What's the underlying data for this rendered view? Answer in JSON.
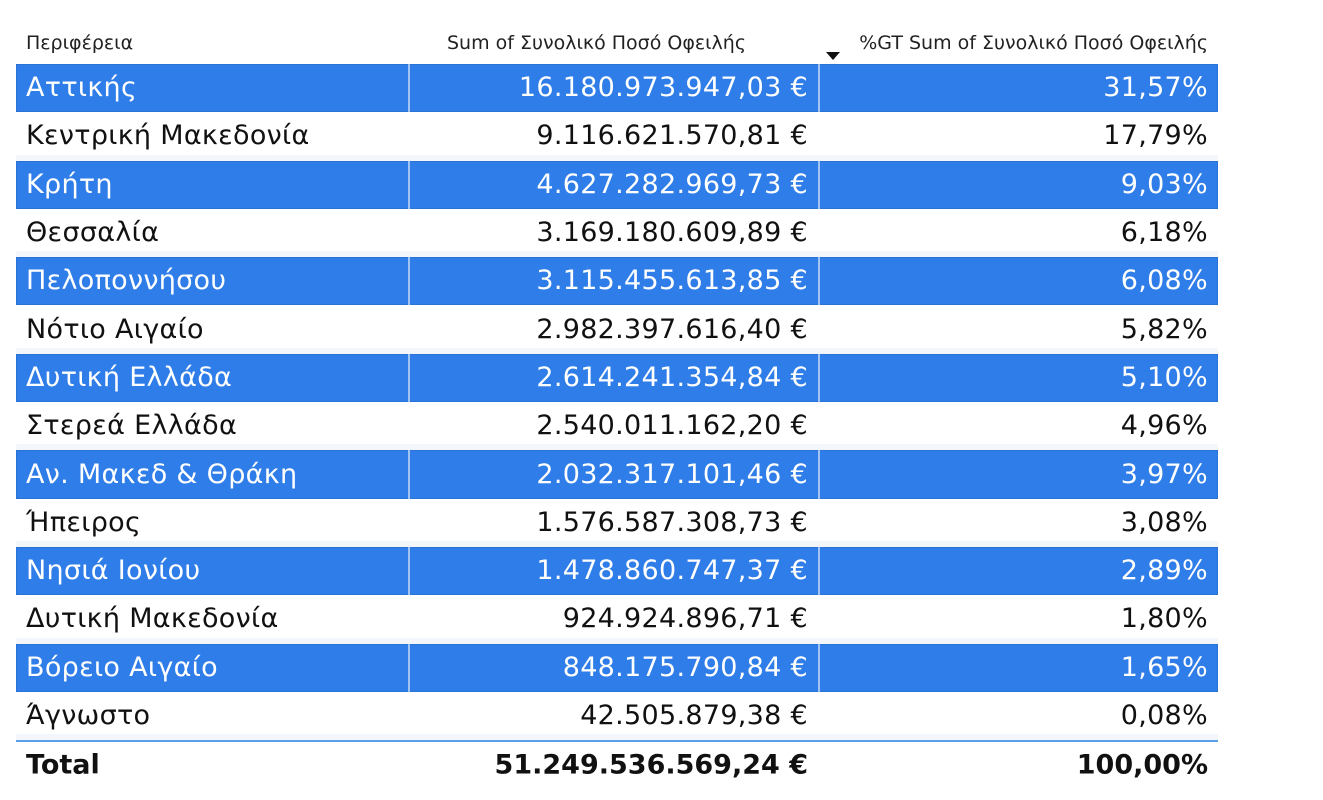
{
  "chart_data": {
    "type": "table",
    "columns": [
      "Περιφέρεια",
      "Sum of Συνολικό Ποσό Οφειλής",
      "%GT Sum of Συνολικό Ποσό Οφειλής"
    ],
    "sorted_column": "%GT Sum of Συνολικό Ποσό Οφειλής",
    "sort_direction": "descending",
    "rows": [
      {
        "region": "Αττικής",
        "sum": "16.180.973.947,03 €",
        "pct": "31,57%"
      },
      {
        "region": "Κεντρική Μακεδονία",
        "sum": "9.116.621.570,81 €",
        "pct": "17,79%"
      },
      {
        "region": "Κρήτη",
        "sum": "4.627.282.969,73 €",
        "pct": "9,03%"
      },
      {
        "region": "Θεσσαλία",
        "sum": "3.169.180.609,89 €",
        "pct": "6,18%"
      },
      {
        "region": "Πελοποννήσου",
        "sum": "3.115.455.613,85 €",
        "pct": "6,08%"
      },
      {
        "region": "Νότιο Αιγαίο",
        "sum": "2.982.397.616,40 €",
        "pct": "5,82%"
      },
      {
        "region": "Δυτική Ελλάδα",
        "sum": "2.614.241.354,84 €",
        "pct": "5,10%"
      },
      {
        "region": "Στερεά Ελλάδα",
        "sum": "2.540.011.162,20 €",
        "pct": "4,96%"
      },
      {
        "region": "Αν. Μακεδ & Θράκη",
        "sum": "2.032.317.101,46 €",
        "pct": "3,97%"
      },
      {
        "region": "Ήπειρος",
        "sum": "1.576.587.308,73 €",
        "pct": "3,08%"
      },
      {
        "region": "Νησιά Ιονίου",
        "sum": "1.478.860.747,37 €",
        "pct": "2,89%"
      },
      {
        "region": "Δυτική Μακεδονία",
        "sum": "924.924.896,71 €",
        "pct": "1,80%"
      },
      {
        "region": "Βόρειο Αιγαίο",
        "sum": "848.175.790,84 €",
        "pct": "1,65%"
      },
      {
        "region": "Άγνωστο",
        "sum": "42.505.879,38 €",
        "pct": "0,08%"
      }
    ],
    "total": {
      "label": "Total",
      "sum": "51.249.536.569,24 €",
      "pct": "100,00%"
    }
  },
  "colors": {
    "band_row": "#2f7de8",
    "band_text": "#ffffff",
    "total_border": "#5aa0e8"
  },
  "icons": {
    "sort": "sort-descending-icon"
  }
}
